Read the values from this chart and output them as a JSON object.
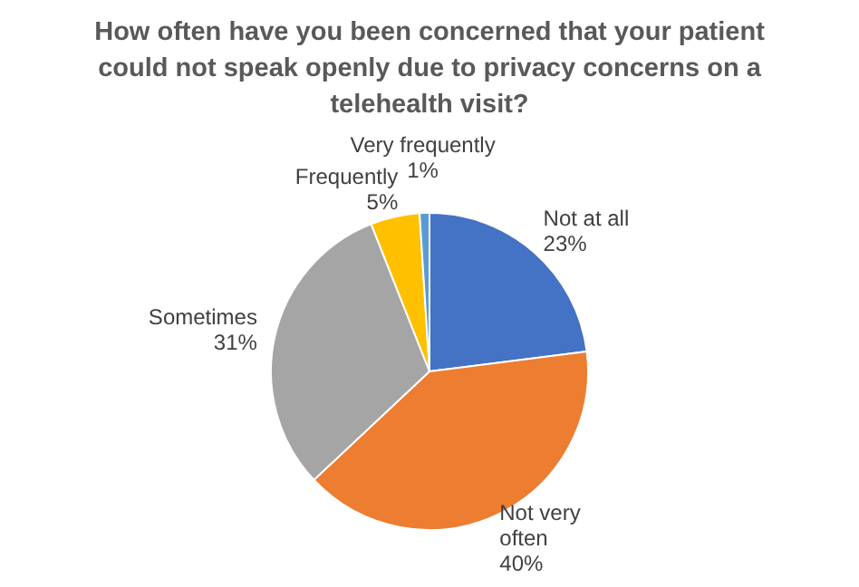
{
  "chart_data": {
    "type": "pie",
    "title": "How often have you been concerned that your patient could not speak openly due to privacy concerns on a telehealth visit?",
    "categories": [
      "Not at all",
      "Not very often",
      "Sometimes",
      "Frequently",
      "Very frequently"
    ],
    "values": [
      23,
      40,
      31,
      5,
      1
    ],
    "value_labels": [
      "23%",
      "40%",
      "31%",
      "5%",
      "1%"
    ],
    "colors": [
      "#4472c4",
      "#ed7d31",
      "#a5a5a5",
      "#ffc000",
      "#5b9bd5"
    ],
    "legend": false
  }
}
